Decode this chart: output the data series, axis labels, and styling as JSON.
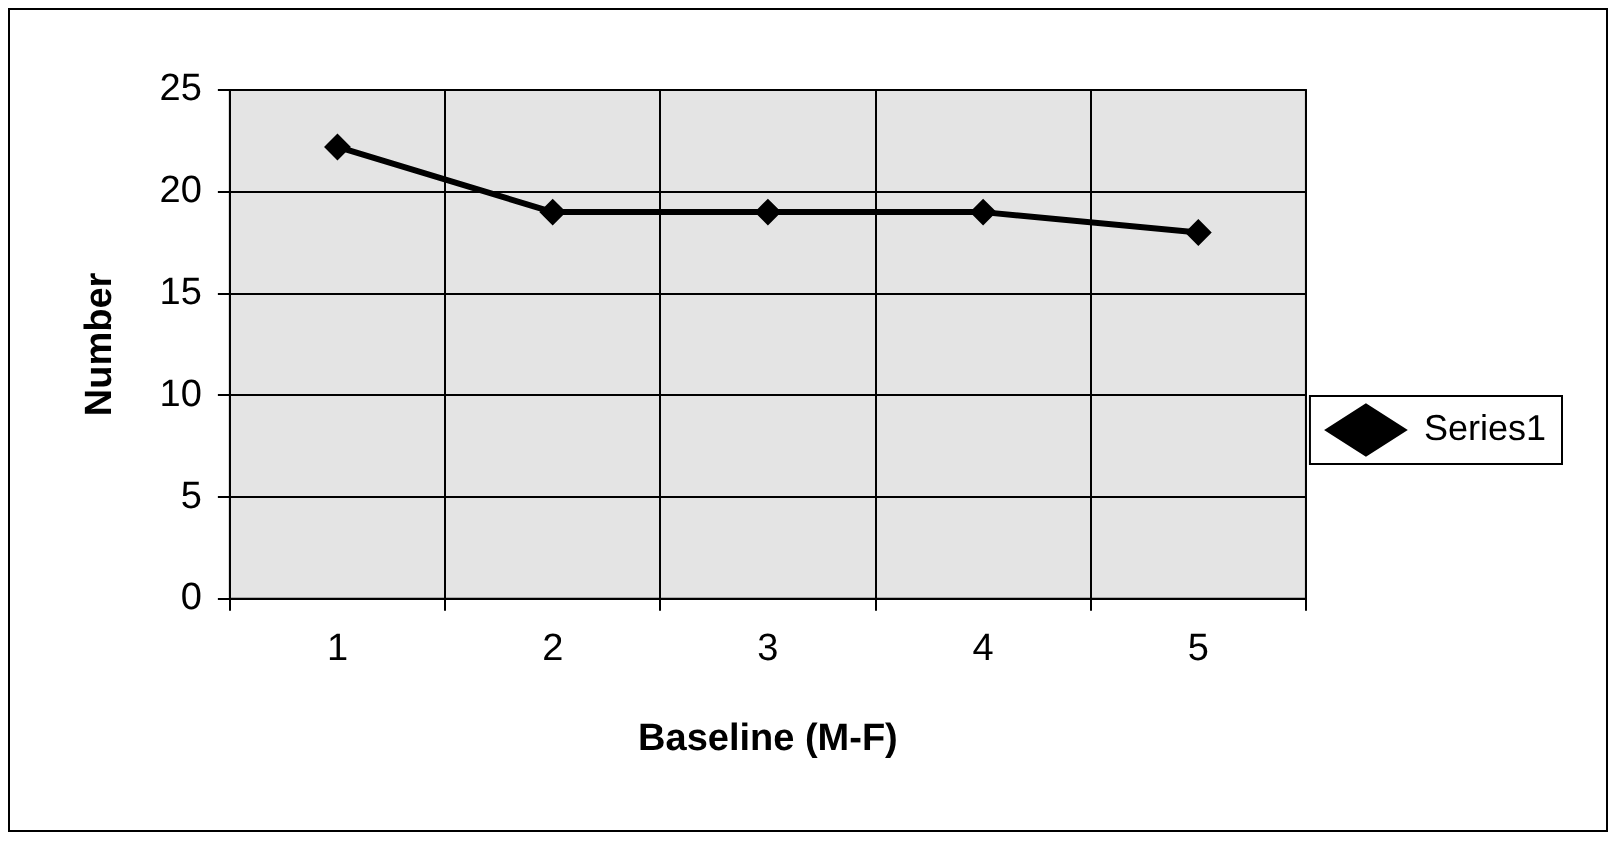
{
  "chart_data": {
    "type": "line",
    "xlabel": "Baseline (M-F)",
    "ylabel": "Number",
    "categories": [
      "1",
      "2",
      "3",
      "4",
      "5"
    ],
    "series": [
      {
        "name": "Series1",
        "color": "#000000",
        "values": [
          22.2,
          19,
          19,
          19,
          18
        ]
      }
    ],
    "ylim": [
      0,
      25
    ],
    "yticks": [
      0,
      5,
      10,
      15,
      20,
      25
    ],
    "grid": true,
    "legend": "right",
    "marker": "diamond",
    "line_style": "solid"
  }
}
